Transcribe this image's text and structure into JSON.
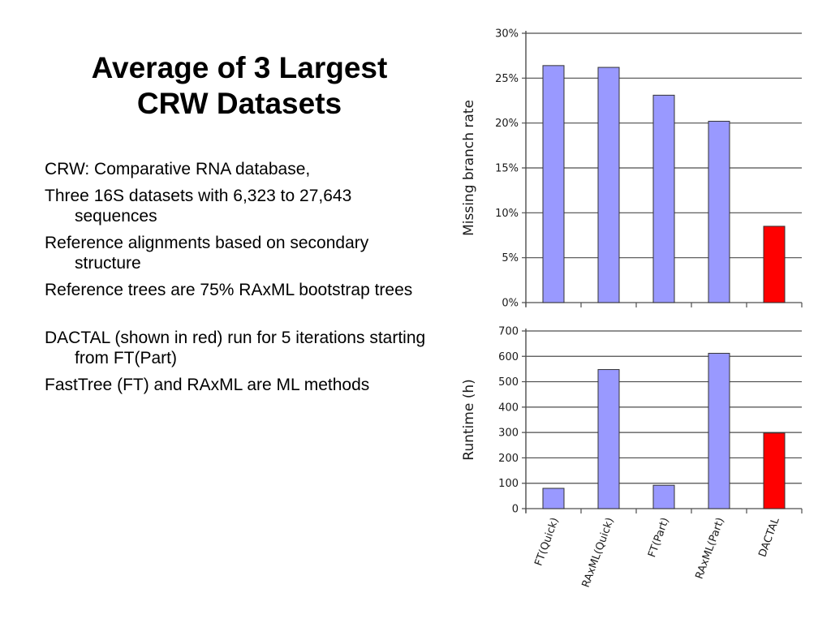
{
  "title": {
    "line1": "Average of 3 Largest",
    "line2": "CRW Datasets"
  },
  "bullets": [
    "CRW: Comparative RNA database,",
    "Three 16S datasets with 6,323 to 27,643 sequences",
    "Reference alignments based on secondary structure",
    "Reference trees are 75% RAxML bootstrap trees",
    "DACTAL (shown in red) run for 5 iterations starting from FT(Part)",
    "FastTree (FT) and RAxML are ML methods"
  ],
  "colors": {
    "method_bar": "#9999ff",
    "dactal_bar": "#ff0000",
    "grid": "#4d4d4d",
    "bar_stroke": "#333333"
  },
  "chart_data": [
    {
      "type": "bar",
      "categories": [
        "FT(Quick)",
        "RAxML(Quick)",
        "FT(Part)",
        "RAxML(Part)",
        "DACTAL"
      ],
      "values": [
        26.4,
        26.2,
        23.1,
        20.2,
        8.5
      ],
      "title": "",
      "xlabel": "",
      "ylabel": "Missing branch rate",
      "ylim": [
        0,
        30
      ],
      "yticks": [
        0,
        5,
        10,
        15,
        20,
        25,
        30
      ],
      "ytick_labels": [
        "0%",
        "5%",
        "10%",
        "15%",
        "20%",
        "25%",
        "30%"
      ],
      "bar_colors": [
        "#9999ff",
        "#9999ff",
        "#9999ff",
        "#9999ff",
        "#ff0000"
      ],
      "grid": true
    },
    {
      "type": "bar",
      "categories": [
        "FT(Quick)",
        "RAxML(Quick)",
        "FT(Part)",
        "RAxML(Part)",
        "DACTAL"
      ],
      "values": [
        80,
        548,
        92,
        612,
        298
      ],
      "title": "",
      "xlabel": "",
      "ylabel": "Runtime (h)",
      "ylim": [
        0,
        700
      ],
      "yticks": [
        0,
        100,
        200,
        300,
        400,
        500,
        600,
        700
      ],
      "ytick_labels": [
        "0",
        "100",
        "200",
        "300",
        "400",
        "500",
        "600",
        "700"
      ],
      "bar_colors": [
        "#9999ff",
        "#9999ff",
        "#9999ff",
        "#9999ff",
        "#ff0000"
      ],
      "grid": true
    }
  ]
}
